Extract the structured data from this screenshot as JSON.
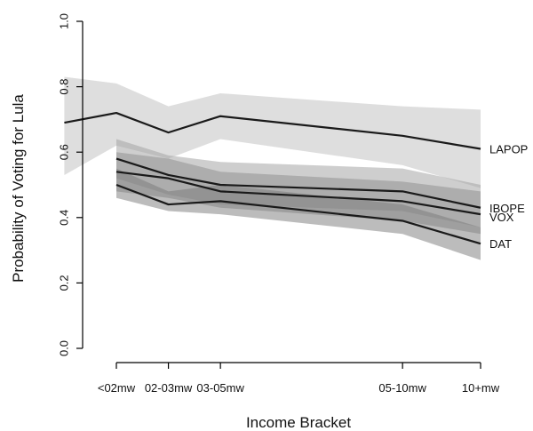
{
  "chart_data": {
    "type": "line",
    "title": "",
    "xlabel": "Income Bracket",
    "ylabel": "Probability of Voting for Lula",
    "x": [
      1,
      2,
      3,
      6.5,
      8
    ],
    "x_tick_labels": [
      "<02mw",
      "02-03mw",
      "03-05mw",
      "05-10mw",
      "10+mw"
    ],
    "ylim": [
      0.0,
      1.0
    ],
    "y_ticks": [
      0.0,
      0.2,
      0.4,
      0.6,
      0.8,
      1.0
    ],
    "y_tick_labels": [
      "0.0",
      "0.2",
      "0.4",
      "0.6",
      "0.8",
      "1.0"
    ],
    "grid": false,
    "legend": "direct labels at right end of lines",
    "series": [
      {
        "name": "LAPOP",
        "x": [
          0,
          1,
          2,
          3,
          6.5,
          8
        ],
        "values": [
          0.69,
          0.72,
          0.66,
          0.71,
          0.65,
          0.61
        ],
        "lower": [
          0.53,
          0.62,
          0.58,
          0.64,
          0.56,
          0.49
        ],
        "upper": [
          0.83,
          0.81,
          0.74,
          0.78,
          0.74,
          0.73
        ],
        "band_color": "#bdbdbd"
      },
      {
        "name": "IBOPE",
        "x": [
          1,
          2,
          3,
          6.5,
          8
        ],
        "values": [
          0.58,
          0.53,
          0.5,
          0.48,
          0.43
        ],
        "lower": [
          0.52,
          0.47,
          0.44,
          0.42,
          0.37
        ],
        "upper": [
          0.64,
          0.59,
          0.57,
          0.55,
          0.5
        ],
        "band_color": "#9e9e9e"
      },
      {
        "name": "VOX",
        "x": [
          1,
          2,
          3,
          6.5,
          8
        ],
        "values": [
          0.54,
          0.52,
          0.48,
          0.45,
          0.41
        ],
        "lower": [
          0.48,
          0.46,
          0.43,
          0.39,
          0.35
        ],
        "upper": [
          0.6,
          0.58,
          0.54,
          0.51,
          0.48
        ],
        "band_color": "#8c8c8c"
      },
      {
        "name": "DAT",
        "x": [
          1,
          2,
          3,
          6.5,
          8
        ],
        "values": [
          0.5,
          0.44,
          0.45,
          0.39,
          0.32
        ],
        "lower": [
          0.46,
          0.42,
          0.41,
          0.35,
          0.27
        ],
        "upper": [
          0.55,
          0.48,
          0.5,
          0.44,
          0.37
        ],
        "band_color": "#7a7a7a"
      }
    ]
  }
}
